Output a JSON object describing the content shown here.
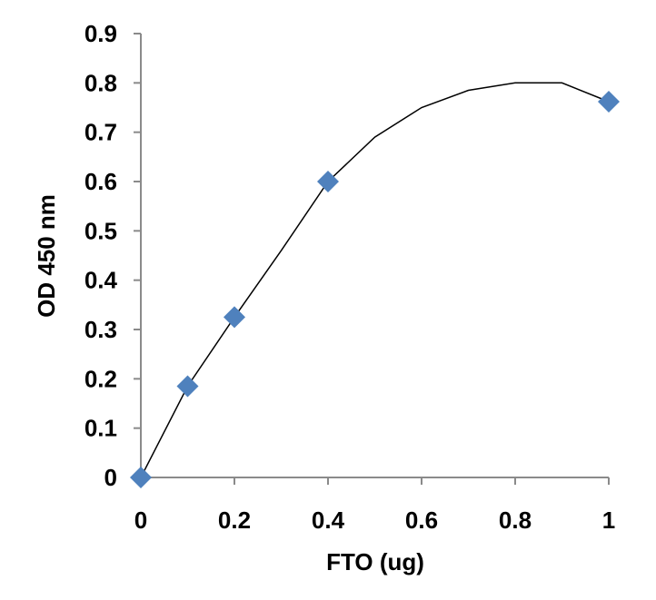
{
  "chart_data": {
    "type": "scatter",
    "title": "",
    "xlabel": "FTO (ug)",
    "ylabel": "OD 450 nm",
    "xlim": [
      0,
      1
    ],
    "ylim": [
      0,
      0.9
    ],
    "xticks": [
      0,
      0.2,
      0.4,
      0.6,
      0.8,
      1
    ],
    "xtick_labels": [
      "0",
      "0.2",
      "0.4",
      "0.6",
      "0.8",
      "1"
    ],
    "yticks": [
      0,
      0.1,
      0.2,
      0.3,
      0.4,
      0.5,
      0.6,
      0.7,
      0.8,
      0.9
    ],
    "ytick_labels": [
      "0",
      "0.1",
      "0.2",
      "0.3",
      "0.4",
      "0.5",
      "0.6",
      "0.7",
      "0.8",
      "0.9"
    ],
    "grid": false,
    "legend": "none",
    "marker": "diamond",
    "marker_color": "#4f81bd",
    "series": [
      {
        "x": [
          0,
          0.1,
          0.2,
          0.4,
          1
        ],
        "y": [
          0,
          0.185,
          0.325,
          0.6,
          0.762
        ]
      }
    ],
    "trendline": {
      "type": "polynomial",
      "order": 2,
      "x": [
        0,
        0.1,
        0.2,
        0.3,
        0.4,
        0.5,
        0.6,
        0.7,
        0.8,
        0.9,
        1
      ],
      "y": [
        0,
        0.185,
        0.325,
        0.46,
        0.6,
        0.69,
        0.75,
        0.785,
        0.8,
        0.8,
        0.762
      ]
    }
  }
}
